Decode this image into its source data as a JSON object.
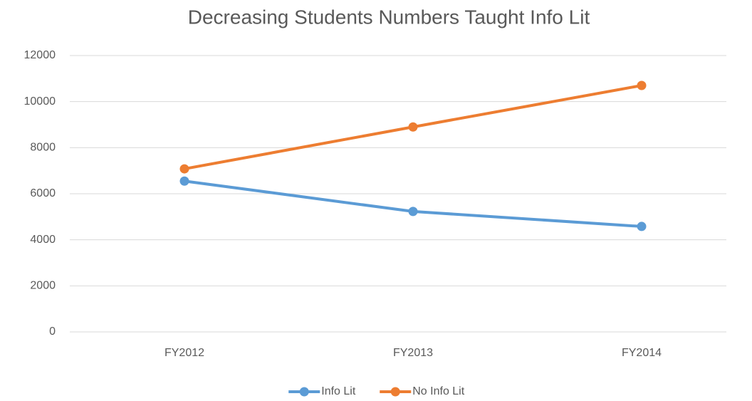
{
  "chart_data": {
    "type": "line",
    "title": "Decreasing Students Numbers Taught Info Lit",
    "categories": [
      "FY2012",
      "FY2013",
      "FY2014"
    ],
    "series": [
      {
        "name": "Info Lit",
        "color": "#5b9bd5",
        "values": [
          6550,
          5230,
          4580
        ]
      },
      {
        "name": "No Info Lit",
        "color": "#ed7d31",
        "values": [
          7080,
          8900,
          10700
        ]
      }
    ],
    "ylim": [
      0,
      12000
    ],
    "yticks": [
      0,
      2000,
      4000,
      6000,
      8000,
      10000,
      12000
    ],
    "grid": true,
    "legend": "bottom"
  }
}
